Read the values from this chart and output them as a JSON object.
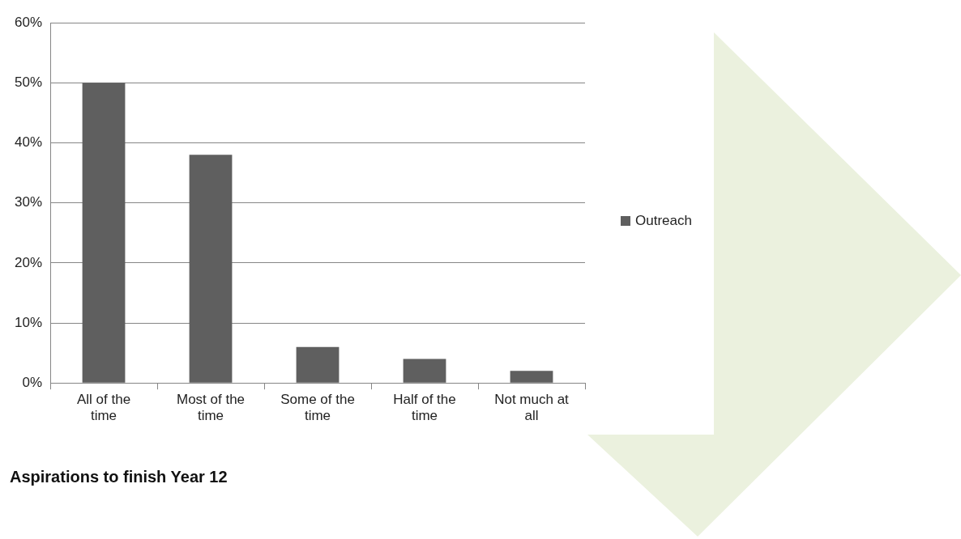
{
  "chart_data": {
    "type": "bar",
    "title": "Aspirations to finish Year 12",
    "categories": [
      "All of the time",
      "Most of the time",
      "Some of the time",
      "Half of the time",
      "Not much at all"
    ],
    "series": [
      {
        "name": "Outreach",
        "color": "#5f5f5f",
        "values": [
          50,
          38,
          6,
          4,
          2
        ]
      }
    ],
    "ylim": [
      0,
      60
    ],
    "yticks": [
      {
        "value": 0,
        "label": "0%"
      },
      {
        "value": 10,
        "label": "10%"
      },
      {
        "value": 20,
        "label": "20%"
      },
      {
        "value": 30,
        "label": "30%"
      },
      {
        "value": 40,
        "label": "40%"
      },
      {
        "value": 50,
        "label": "50%"
      },
      {
        "value": 60,
        "label": "60%"
      }
    ],
    "grid": "y",
    "legend": "right"
  }
}
